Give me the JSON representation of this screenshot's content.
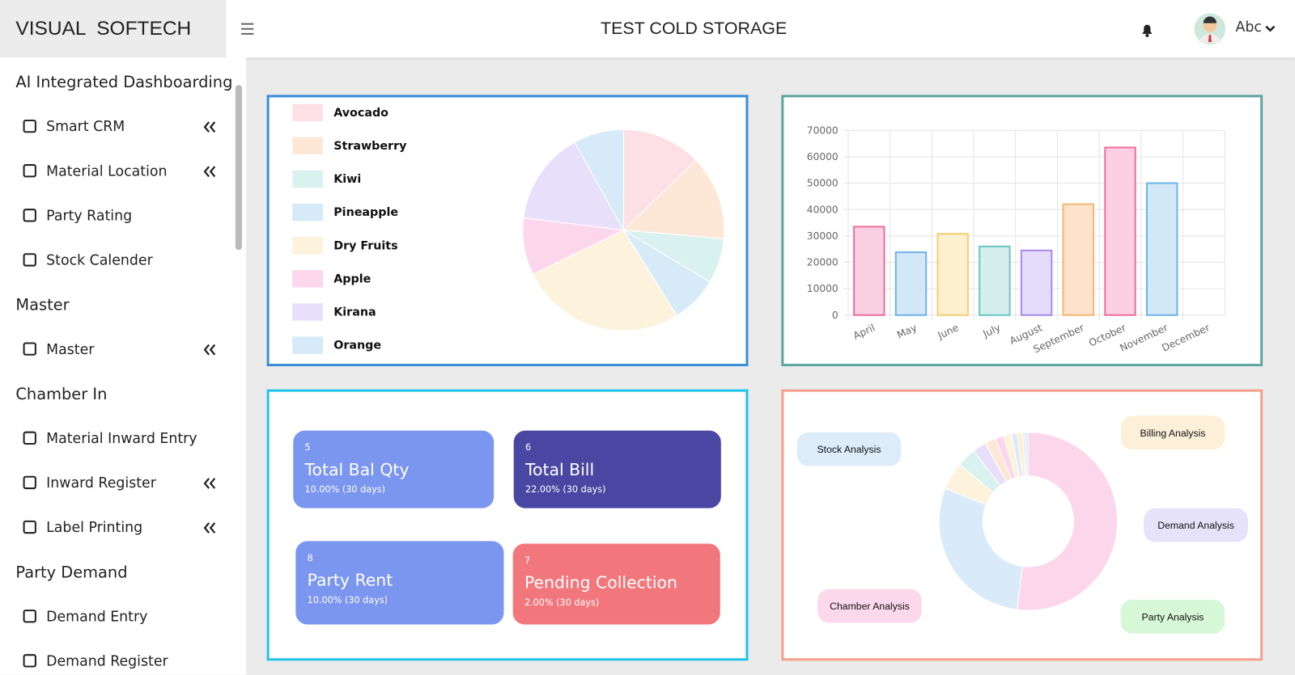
{
  "header": {
    "brand": "VISUAL  SOFTECH",
    "title": "TEST COLD STORAGE",
    "user": "Abc"
  },
  "sidebar": {
    "sections": [
      {
        "title": "AI Integrated Dashboarding",
        "items": [
          {
            "label": "Smart CRM",
            "expandable": true
          },
          {
            "label": "Material Location",
            "expandable": true
          },
          {
            "label": "Party Rating",
            "expandable": false
          },
          {
            "label": "Stock Calender",
            "expandable": false
          }
        ]
      },
      {
        "title": "Master",
        "items": [
          {
            "label": "Master",
            "expandable": true
          }
        ]
      },
      {
        "title": "Chamber In",
        "items": [
          {
            "label": "Material Inward Entry",
            "expandable": false
          },
          {
            "label": "Inward Register",
            "expandable": true
          },
          {
            "label": "Label Printing",
            "expandable": true
          }
        ]
      },
      {
        "title": "Party Demand",
        "items": [
          {
            "label": "Demand Entry",
            "expandable": false
          },
          {
            "label": "Demand Register",
            "expandable": false
          }
        ]
      }
    ]
  },
  "fruit_chart": {
    "type": "pie",
    "categories": [
      "Avocado",
      "Strawberry",
      "Kiwi",
      "Pineapple",
      "Dry Fruits",
      "Apple",
      "Kirana",
      "Orange"
    ],
    "values": [
      46,
      49,
      26,
      27,
      96,
      33,
      54,
      29
    ],
    "colors": [
      "#fde0e6",
      "#fde8d8",
      "#d9f2f0",
      "#d6eaf8",
      "#fdf3dc",
      "#fcd6ea",
      "#e8e0fa",
      "#d6eaf8"
    ]
  },
  "monthly_chart": {
    "type": "bar",
    "categories": [
      "April",
      "May",
      "June",
      "July",
      "August",
      "September",
      "October",
      "November",
      "December"
    ],
    "values": [
      33500,
      23800,
      30800,
      26000,
      24500,
      42000,
      63500,
      50000,
      0
    ],
    "colors": [
      "#fbd0e2",
      "#d3e8f7",
      "#fdf0cf",
      "#d4efee",
      "#e5dcfb",
      "#fde3cc",
      "#fbd0e2",
      "#d3e8f7",
      "#d4efee"
    ],
    "borders": [
      "#ef6f9e",
      "#6fb4e6",
      "#f5cf73",
      "#6cc6c3",
      "#a98bee",
      "#f5b873",
      "#ef6f9e",
      "#6fb4e6",
      "#6cc6c3"
    ],
    "ylim": [
      0,
      70000
    ],
    "yticks": [
      0,
      10000,
      20000,
      30000,
      40000,
      50000,
      60000,
      70000
    ],
    "grid": true
  },
  "cards": [
    {
      "count": 5,
      "title": "Total Bal Qty",
      "change": "10.00% (30 days)",
      "color": "#7b96ee"
    },
    {
      "count": 6,
      "title": "Total Bill",
      "change": "22.00% (30 days)",
      "color": "#4a47a3"
    },
    {
      "count": 8,
      "title": "Party Rent",
      "change": "10.00% (30 days)",
      "color": "#7b96ee"
    },
    {
      "count": 7,
      "title": "Pending Collection",
      "change": "2.00% (30 days)",
      "color": "#f2777d"
    }
  ],
  "analysis_chart": {
    "type": "doughnut",
    "values": [
      52,
      29,
      5,
      3.5,
      2.5,
      2,
      1.5,
      1.5,
      1,
      1,
      0.5,
      0.5
    ],
    "colors": [
      "#fcd6ea",
      "#d9eaf8",
      "#fdf3dc",
      "#d9f2f0",
      "#e8e0fa",
      "#fde8d8",
      "#fcd6ea",
      "#fdf3dc",
      "#d9eaf8",
      "#fcefd6",
      "#d9f2f0",
      "#e8e0fa"
    ],
    "labels": [
      {
        "text": "Stock Analysis",
        "color": "#dcecf9"
      },
      {
        "text": "Billing Analysis",
        "color": "#fdf0d9"
      },
      {
        "text": "Demand Analysis",
        "color": "#e6e2fa"
      },
      {
        "text": "Chamber Analysis",
        "color": "#fbd9ea"
      },
      {
        "text": "Party Analysis",
        "color": "#d7f8d6"
      }
    ]
  }
}
